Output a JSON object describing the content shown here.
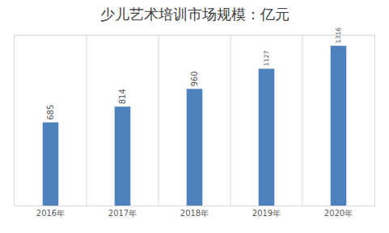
{
  "chart_data": {
    "type": "bar",
    "title": "少儿艺术培训市场规模：亿元",
    "categories": [
      "2016年",
      "2017年",
      "2018年",
      "2019年",
      "2020年"
    ],
    "values": [
      685,
      814,
      960,
      1127,
      1316
    ],
    "color": "#4f81bd",
    "ylim": [
      0,
      1400
    ],
    "data_labels": true,
    "tick_labels": "x",
    "grid": true
  }
}
